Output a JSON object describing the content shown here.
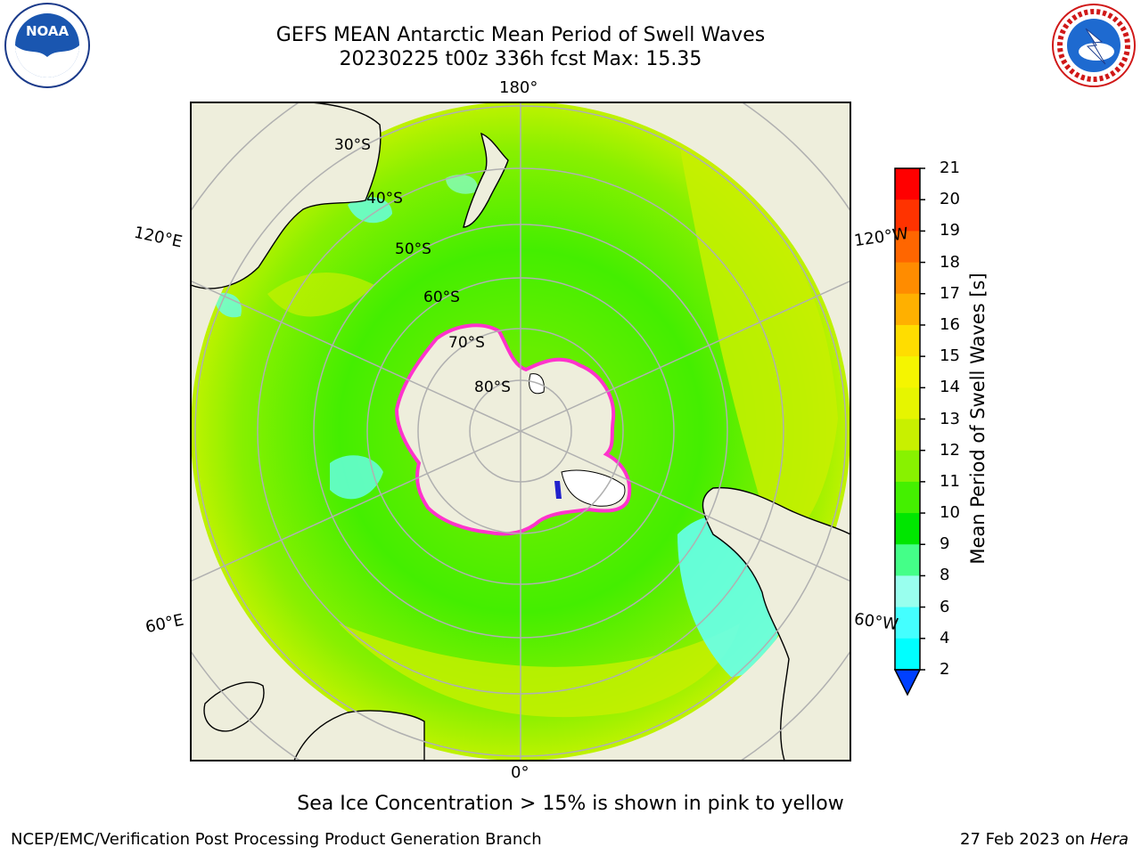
{
  "title_line1": "GEFS MEAN Antarctic Mean Period of Swell Waves",
  "title_line2": "20230225 t00z 336h fcst   Max: 15.35",
  "meridian_labels": {
    "top": "180°",
    "bottom": "0°",
    "left_upper": "120°E",
    "left_lower": "60°E",
    "right_upper": "120°W",
    "right_lower": "60°W"
  },
  "latitude_labels": [
    "30°S",
    "40°S",
    "50°S",
    "60°S",
    "70°S",
    "80°S"
  ],
  "colorbar": {
    "label": "Mean Period of Swell Waves [s]",
    "ticks": [
      "21",
      "20",
      "19",
      "18",
      "17",
      "16",
      "15",
      "14",
      "13",
      "12",
      "11",
      "10",
      "9",
      "8",
      "6",
      "4",
      "2"
    ],
    "colors": [
      "#ff0000",
      "#ff3300",
      "#ff6600",
      "#ff8c00",
      "#ffb000",
      "#ffdd00",
      "#f5f500",
      "#e6f500",
      "#c8f000",
      "#88f200",
      "#44f000",
      "#00e600",
      "#44ff88",
      "#99ffee",
      "#44ffff",
      "#00ffff",
      "#0090ff",
      "#0040ff"
    ]
  },
  "note": "Sea Ice Concentration > 15% is shown in pink to yellow",
  "footer_left": "NCEP/EMC/Verification Post Processing Product Generation Branch",
  "footer_date": "27 Feb 2023 on",
  "footer_machine": "Hera",
  "logos": {
    "left_text": "NOAA",
    "right_text": "NATIONAL WEATHER SERVICE"
  }
}
